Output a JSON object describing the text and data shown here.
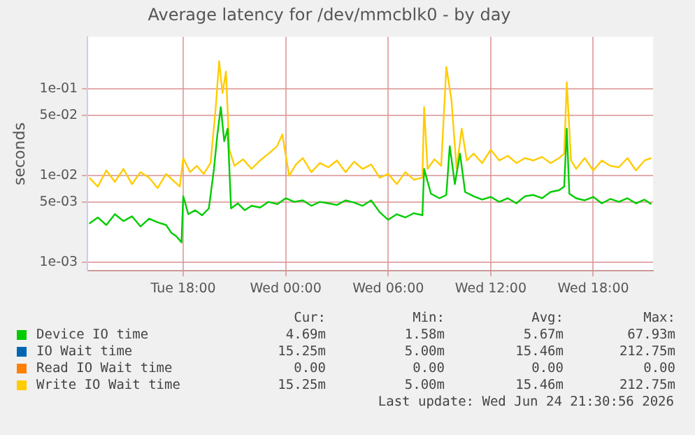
{
  "chart_data": {
    "type": "line",
    "title": "Average latency for /dev/mmcblk0 - by day",
    "ylabel": "seconds",
    "log": "y",
    "grid": true,
    "legend": "bottom",
    "marker": "none",
    "line_style": "solid",
    "xlim": [
      "2026-06-23T12:24",
      "2026-06-24T21:30"
    ],
    "xticks": [
      {
        "value": "2026-06-23T18:00",
        "label": "Tue 18:00"
      },
      {
        "value": "2026-06-24T00:00",
        "label": "Wed 00:00"
      },
      {
        "value": "2026-06-24T06:00",
        "label": "Wed 06:00"
      },
      {
        "value": "2026-06-24T12:00",
        "label": "Wed 12:00"
      },
      {
        "value": "2026-06-24T18:00",
        "label": "Wed 18:00"
      }
    ],
    "ylim": [
      0.0008,
      0.4
    ],
    "yticks": [
      {
        "value": 0.001,
        "label": "1e-03"
      },
      {
        "value": 0.005,
        "label": "5e-03"
      },
      {
        "value": 0.01,
        "label": "1e-02"
      },
      {
        "value": 0.05,
        "label": "5e-02"
      },
      {
        "value": 0.1,
        "label": "1e-01"
      }
    ],
    "series": [
      {
        "name": "Device IO time",
        "color": "#00cc00",
        "x": [
          "2026-06-23T12:30",
          "2026-06-23T13:00",
          "2026-06-23T13:30",
          "2026-06-23T14:00",
          "2026-06-23T14:30",
          "2026-06-23T15:00",
          "2026-06-23T15:30",
          "2026-06-23T16:00",
          "2026-06-23T16:30",
          "2026-06-23T17:00",
          "2026-06-23T17:18",
          "2026-06-23T17:36",
          "2026-06-23T17:54",
          "2026-06-23T18:00",
          "2026-06-23T18:18",
          "2026-06-23T18:42",
          "2026-06-23T19:06",
          "2026-06-23T19:30",
          "2026-06-23T19:48",
          "2026-06-23T20:00",
          "2026-06-23T20:12",
          "2026-06-23T20:24",
          "2026-06-23T20:36",
          "2026-06-23T20:48",
          "2026-06-23T21:12",
          "2026-06-23T21:36",
          "2026-06-23T22:00",
          "2026-06-23T22:30",
          "2026-06-23T23:00",
          "2026-06-23T23:30",
          "2026-06-24T00:00",
          "2026-06-24T00:30",
          "2026-06-24T01:00",
          "2026-06-24T01:30",
          "2026-06-24T02:00",
          "2026-06-24T02:30",
          "2026-06-24T03:00",
          "2026-06-24T03:30",
          "2026-06-24T04:00",
          "2026-06-24T04:30",
          "2026-06-24T05:00",
          "2026-06-24T05:30",
          "2026-06-24T06:00",
          "2026-06-24T06:30",
          "2026-06-24T07:00",
          "2026-06-24T07:30",
          "2026-06-24T08:00",
          "2026-06-24T08:06",
          "2026-06-24T08:30",
          "2026-06-24T09:00",
          "2026-06-24T09:24",
          "2026-06-24T09:36",
          "2026-06-24T09:54",
          "2026-06-24T10:12",
          "2026-06-24T10:30",
          "2026-06-24T11:00",
          "2026-06-24T11:30",
          "2026-06-24T12:00",
          "2026-06-24T12:30",
          "2026-06-24T13:00",
          "2026-06-24T13:30",
          "2026-06-24T14:00",
          "2026-06-24T14:30",
          "2026-06-24T15:00",
          "2026-06-24T15:30",
          "2026-06-24T16:00",
          "2026-06-24T16:18",
          "2026-06-24T16:27",
          "2026-06-24T16:36",
          "2026-06-24T17:00",
          "2026-06-24T17:30",
          "2026-06-24T18:00",
          "2026-06-24T18:30",
          "2026-06-24T19:00",
          "2026-06-24T19:30",
          "2026-06-24T20:00",
          "2026-06-24T20:30",
          "2026-06-24T21:00",
          "2026-06-24T21:24"
        ],
        "values": [
          0.0028,
          0.0033,
          0.0027,
          0.0036,
          0.003,
          0.0034,
          0.0026,
          0.0032,
          0.0029,
          0.0027,
          0.0022,
          0.002,
          0.0017,
          0.0058,
          0.0036,
          0.004,
          0.0035,
          0.0042,
          0.012,
          0.03,
          0.062,
          0.025,
          0.035,
          0.0042,
          0.0048,
          0.004,
          0.0045,
          0.0043,
          0.005,
          0.0047,
          0.0055,
          0.005,
          0.0052,
          0.0045,
          0.005,
          0.0048,
          0.0046,
          0.0052,
          0.0049,
          0.0045,
          0.0052,
          0.0038,
          0.0031,
          0.0036,
          0.0033,
          0.0037,
          0.0035,
          0.012,
          0.0062,
          0.0055,
          0.006,
          0.022,
          0.008,
          0.018,
          0.0065,
          0.0058,
          0.0053,
          0.0057,
          0.005,
          0.0055,
          0.0048,
          0.0058,
          0.006,
          0.0055,
          0.0065,
          0.0068,
          0.0075,
          0.035,
          0.0062,
          0.0055,
          0.0052,
          0.0057,
          0.0048,
          0.0054,
          0.005,
          0.0055,
          0.0048,
          0.0053,
          0.0047
        ]
      },
      {
        "name": "IO Wait time",
        "color": "#0066b3"
      },
      {
        "name": "Read IO Wait time",
        "color": "#ff8000"
      },
      {
        "name": "Write IO Wait time",
        "color": "#ffcc00",
        "x": [
          "2026-06-23T12:30",
          "2026-06-23T13:00",
          "2026-06-23T13:30",
          "2026-06-23T14:00",
          "2026-06-23T14:30",
          "2026-06-23T15:00",
          "2026-06-23T15:30",
          "2026-06-23T16:00",
          "2026-06-23T16:30",
          "2026-06-23T17:00",
          "2026-06-23T17:30",
          "2026-06-23T17:48",
          "2026-06-23T18:00",
          "2026-06-23T18:24",
          "2026-06-23T18:48",
          "2026-06-23T19:12",
          "2026-06-23T19:36",
          "2026-06-23T19:54",
          "2026-06-23T20:06",
          "2026-06-23T20:18",
          "2026-06-23T20:30",
          "2026-06-23T20:42",
          "2026-06-23T21:00",
          "2026-06-23T21:30",
          "2026-06-23T22:00",
          "2026-06-23T22:30",
          "2026-06-23T23:00",
          "2026-06-23T23:30",
          "2026-06-23T23:48",
          "2026-06-24T00:12",
          "2026-06-24T00:36",
          "2026-06-24T01:00",
          "2026-06-24T01:30",
          "2026-06-24T02:00",
          "2026-06-24T02:30",
          "2026-06-24T03:00",
          "2026-06-24T03:30",
          "2026-06-24T04:00",
          "2026-06-24T04:30",
          "2026-06-24T05:00",
          "2026-06-24T05:30",
          "2026-06-24T06:00",
          "2026-06-24T06:30",
          "2026-06-24T07:00",
          "2026-06-24T07:30",
          "2026-06-24T08:00",
          "2026-06-24T08:06",
          "2026-06-24T08:18",
          "2026-06-24T08:42",
          "2026-06-24T09:06",
          "2026-06-24T09:24",
          "2026-06-24T09:42",
          "2026-06-24T10:00",
          "2026-06-24T10:18",
          "2026-06-24T10:36",
          "2026-06-24T11:00",
          "2026-06-24T11:30",
          "2026-06-24T12:00",
          "2026-06-24T12:30",
          "2026-06-24T13:00",
          "2026-06-24T13:30",
          "2026-06-24T14:00",
          "2026-06-24T14:30",
          "2026-06-24T15:00",
          "2026-06-24T15:30",
          "2026-06-24T16:00",
          "2026-06-24T16:18",
          "2026-06-24T16:27",
          "2026-06-24T16:42",
          "2026-06-24T17:00",
          "2026-06-24T17:30",
          "2026-06-24T18:00",
          "2026-06-24T18:30",
          "2026-06-24T19:00",
          "2026-06-24T19:30",
          "2026-06-24T20:00",
          "2026-06-24T20:30",
          "2026-06-24T21:00",
          "2026-06-24T21:24"
        ],
        "values": [
          0.0095,
          0.0075,
          0.0115,
          0.0085,
          0.012,
          0.008,
          0.011,
          0.0095,
          0.0072,
          0.0105,
          0.0085,
          0.0075,
          0.016,
          0.011,
          0.013,
          0.0105,
          0.014,
          0.06,
          0.21,
          0.09,
          0.16,
          0.02,
          0.013,
          0.0155,
          0.012,
          0.015,
          0.018,
          0.022,
          0.03,
          0.01,
          0.0135,
          0.016,
          0.011,
          0.014,
          0.0125,
          0.015,
          0.011,
          0.0145,
          0.012,
          0.0135,
          0.0095,
          0.0105,
          0.008,
          0.011,
          0.009,
          0.0095,
          0.062,
          0.012,
          0.0155,
          0.013,
          0.18,
          0.075,
          0.012,
          0.035,
          0.015,
          0.018,
          0.014,
          0.02,
          0.015,
          0.017,
          0.014,
          0.016,
          0.015,
          0.0165,
          0.014,
          0.016,
          0.018,
          0.12,
          0.015,
          0.012,
          0.016,
          0.0115,
          0.015,
          0.013,
          0.0125,
          0.016,
          0.0115,
          0.015,
          0.016
        ]
      }
    ],
    "annotations": [
      "Cur:",
      "Min:",
      "Avg:",
      "Max:",
      "4.69m",
      "1.58m",
      "5.67m",
      "67.93m",
      "15.25m",
      "5.00m",
      "15.46m",
      "212.75m",
      "0.00",
      "0.00",
      "0.00",
      "0.00",
      "15.25m",
      "5.00m",
      "15.46m",
      "212.75m",
      "Last update: Wed Jun 24 21:30:56 2026"
    ]
  }
}
